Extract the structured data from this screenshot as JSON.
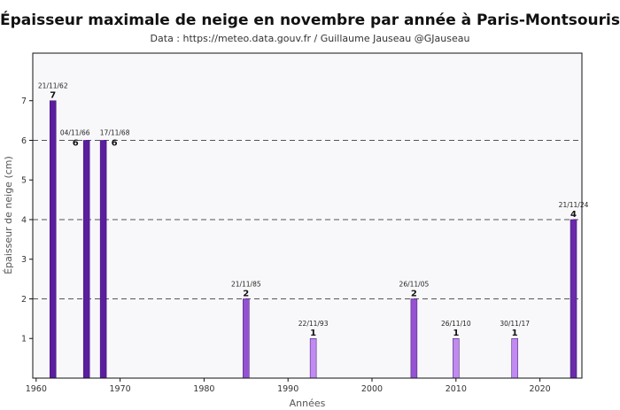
{
  "chart_data": {
    "type": "bar",
    "title": "Épaisseur maximale de neige en novembre par année à Paris-Montsouris",
    "subtitle": "Data : https://meteo.data.gouv.fr / Guillaume Jauseau @GJauseau",
    "xlabel": "Années",
    "ylabel": "Épaisseur de neige (cm)",
    "xlim": [
      1959.6,
      2025
    ],
    "ylim": [
      0,
      8.2
    ],
    "xticks": [
      1960,
      1970,
      1980,
      1990,
      2000,
      2010,
      2020
    ],
    "yticks": [
      1,
      2,
      3,
      4,
      5,
      6,
      7
    ],
    "grid": "dashed horizontal lines at 2, 4, 6",
    "background": "#f8f8fa",
    "bars": [
      {
        "year": 1962,
        "value": 7,
        "date": "21/11/62",
        "color": "#5a1e9e"
      },
      {
        "year": 1966,
        "value": 6,
        "date": "04/11/66",
        "color": "#5a1e9e"
      },
      {
        "year": 1968,
        "value": 6,
        "date": "17/11/68",
        "color": "#5a1e9e"
      },
      {
        "year": 1985,
        "value": 2,
        "date": "21/11/85",
        "color": "#9552d2"
      },
      {
        "year": 1993,
        "value": 1,
        "date": "22/11/93",
        "color": "#c08af0"
      },
      {
        "year": 2005,
        "value": 2,
        "date": "26/11/05",
        "color": "#9552d2"
      },
      {
        "year": 2010,
        "value": 1,
        "date": "26/11/10",
        "color": "#c08af0"
      },
      {
        "year": 2017,
        "value": 1,
        "date": "30/11/17",
        "color": "#c08af0"
      },
      {
        "year": 2024,
        "value": 4,
        "date": "21/11/24",
        "color": "#6a2aaa"
      }
    ]
  }
}
